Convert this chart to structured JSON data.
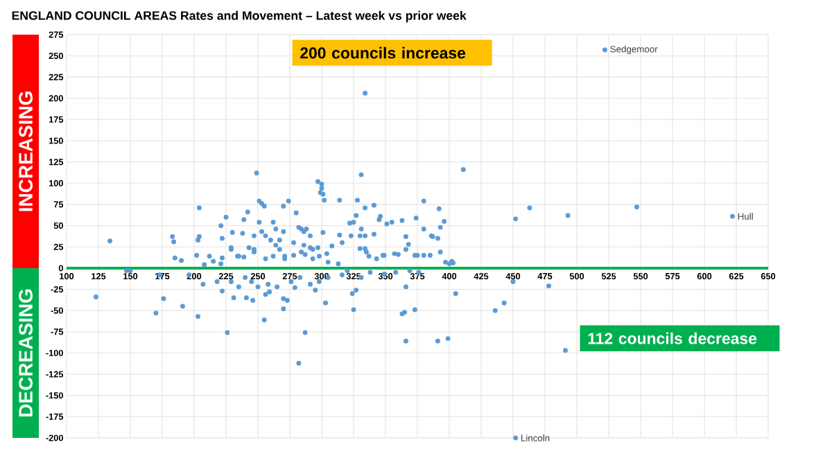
{
  "chart_data": {
    "type": "scatter",
    "title": "ENGLAND COUNCIL AREAS Rates and Movement – Latest week vs prior week",
    "x": [
      134,
      183,
      184,
      185,
      190,
      204,
      204,
      203,
      202,
      208,
      221,
      222,
      225,
      230,
      229,
      242,
      239,
      238,
      249,
      251,
      253,
      255,
      251,
      253,
      256,
      243,
      247,
      262,
      264,
      270,
      274,
      280,
      270,
      267,
      284,
      288,
      291,
      297,
      300,
      300,
      299,
      301,
      302,
      331,
      334,
      314,
      328,
      322,
      325,
      327,
      334,
      341,
      346,
      345,
      351,
      355,
      363,
      374,
      380,
      392,
      396,
      393,
      411,
      452,
      463,
      493,
      547,
      522,
      622,
      331,
      330,
      334,
      330,
      334,
      323,
      314,
      316,
      308,
      341,
      337,
      343,
      348,
      357,
      366,
      368,
      366,
      373,
      380,
      380,
      386,
      387,
      391,
      393,
      397,
      400,
      403,
      402,
      286,
      282,
      284,
      291,
      293,
      301,
      293,
      305,
      212,
      222,
      235,
      239,
      247,
      262,
      271,
      278,
      287,
      298,
      304,
      335,
      349,
      360,
      375,
      385,
      229,
      234,
      247,
      260,
      264,
      267,
      278,
      286,
      256,
      271,
      297,
      221,
      215,
      123,
      170,
      176,
      191,
      203,
      226,
      231,
      241,
      246,
      255,
      256,
      259,
      270,
      270,
      273,
      282,
      287,
      295,
      303,
      325,
      324,
      327,
      363,
      365,
      366,
      366,
      373,
      391,
      399,
      405,
      436,
      443,
      450,
      478,
      491,
      452,
      147,
      150,
      173,
      196,
      207,
      218,
      222,
      229,
      235,
      240,
      245,
      250,
      258,
      265,
      276,
      279,
      283,
      291,
      298,
      305,
      316,
      320,
      331,
      338,
      349,
      358,
      369,
      376,
      313
    ],
    "values": [
      32,
      37,
      31,
      12,
      9,
      71,
      37,
      33,
      15,
      4,
      50,
      35,
      60,
      42,
      22,
      66,
      57,
      41,
      112,
      79,
      76,
      73,
      54,
      43,
      38,
      24,
      22,
      54,
      46,
      73,
      79,
      65,
      43,
      33,
      46,
      46,
      38,
      102,
      99,
      94,
      89,
      87,
      80,
      110,
      206,
      80,
      80,
      53,
      54,
      62,
      71,
      74,
      61,
      57,
      52,
      54,
      56,
      59,
      79,
      70,
      55,
      48,
      116,
      58,
      71,
      62,
      72,
      257,
      61,
      46,
      38,
      38,
      23,
      23,
      38,
      39,
      30,
      26,
      40,
      14,
      11,
      15,
      17,
      22,
      28,
      37,
      15,
      46,
      15,
      38,
      37,
      35,
      19,
      7,
      5,
      6,
      8,
      43,
      48,
      19,
      24,
      22,
      42,
      11,
      7,
      14,
      12,
      14,
      13,
      19,
      14,
      14,
      15,
      16,
      14,
      17,
      19,
      15,
      16,
      15,
      15,
      24,
      14,
      38,
      33,
      27,
      22,
      30,
      27,
      11,
      11,
      24,
      5,
      8,
      -34,
      -53,
      -36,
      -45,
      -57,
      -76,
      -35,
      -35,
      -38,
      -61,
      -31,
      -28,
      -48,
      -36,
      -38,
      -112,
      -76,
      -26,
      -41,
      -49,
      -30,
      -26,
      -54,
      -52,
      -86,
      -22,
      -49,
      -86,
      -83,
      -30,
      -50,
      -41,
      -16,
      -21,
      -97,
      -200,
      -3,
      -3,
      -8,
      -8,
      -19,
      -16,
      -27,
      -16,
      -22,
      -11,
      -16,
      -22,
      -19,
      -22,
      -16,
      -23,
      -11,
      -19,
      -16,
      -11,
      -8,
      -3,
      -11,
      -5,
      -7,
      -5,
      -3,
      -5,
      5
    ],
    "color": "#5b9bd5",
    "grid": true,
    "xlim": [
      100,
      650
    ],
    "ylim": [
      -200,
      275
    ],
    "xticks": [
      100,
      125,
      150,
      175,
      200,
      225,
      250,
      275,
      300,
      325,
      350,
      375,
      400,
      425,
      450,
      475,
      500,
      525,
      550,
      575,
      600,
      625,
      650
    ],
    "yticks": [
      -200,
      -175,
      -150,
      -125,
      -100,
      -75,
      -50,
      -25,
      0,
      25,
      50,
      75,
      100,
      125,
      150,
      175,
      200,
      225,
      250,
      275
    ],
    "annotations": [
      "200 councils increase",
      "112 councils decrease",
      "INCREASING",
      "DECREASING",
      {
        "text": "Sedgemoor",
        "x": 522,
        "y": 257
      },
      {
        "text": "Hull",
        "x": 622,
        "y": 61
      },
      {
        "text": "Lincoln",
        "x": 452,
        "y": -200
      }
    ]
  }
}
